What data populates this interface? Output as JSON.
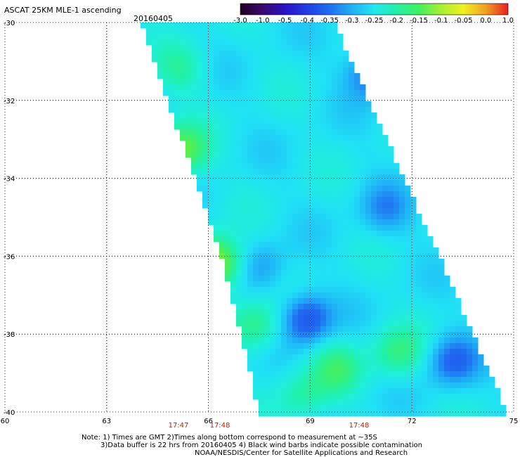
{
  "chart_data": {
    "type": "heatmap",
    "title": "ASCAT 25KM MLE-1 ascending",
    "date": "20160405",
    "colorbar": {
      "labels": [
        "-3.0",
        "-1.0",
        "-0.5",
        "-0.4",
        "-0.35",
        "-0.3",
        "-0.25",
        "-0.2",
        "-0.15",
        "-0.1",
        "-0.05",
        "0.0",
        "1.0"
      ],
      "colors": [
        "#200020",
        "#3a0a6e",
        "#2a10c8",
        "#1f3ee6",
        "#1f6ef0",
        "#1fb0f8",
        "#20e8f0",
        "#20f0a8",
        "#40f060",
        "#a8f030",
        "#f0f020",
        "#f0a020",
        "#e82020"
      ]
    },
    "x_ticks": [
      "60",
      "63",
      "66",
      "69",
      "72",
      "75"
    ],
    "y_ticks": [
      "-30",
      "-32",
      "-34",
      "-36",
      "-38",
      "-40"
    ],
    "xlim": [
      60,
      75
    ],
    "ylim": [
      -40,
      -30
    ],
    "grid": true,
    "times": [
      "17:47",
      "17:48",
      "17:48"
    ],
    "swath_edge_left": [
      [
        64.0,
        -30
      ],
      [
        66.4,
        -36
      ],
      [
        67.5,
        -40
      ]
    ],
    "swath_edge_right": [
      [
        69.7,
        -30
      ],
      [
        72.8,
        -36
      ],
      [
        74.8,
        -40
      ]
    ],
    "features": [
      {
        "type": "low",
        "x": 68.9,
        "y": -37.6,
        "value": -0.38
      },
      {
        "type": "low",
        "x": 73.2,
        "y": -38.7,
        "value": -0.36
      },
      {
        "type": "low",
        "x": 71.2,
        "y": -34.8,
        "value": -0.33
      },
      {
        "type": "low",
        "x": 67.6,
        "y": -36.3,
        "value": -0.32
      },
      {
        "type": "low",
        "x": 70.8,
        "y": -31.3,
        "value": -0.36
      },
      {
        "type": "high",
        "x": 65.2,
        "y": -33.3,
        "value": -0.15
      },
      {
        "type": "high",
        "x": 66.2,
        "y": -36.2,
        "value": -0.1
      },
      {
        "type": "high",
        "x": 71.6,
        "y": -38.5,
        "value": -0.2
      },
      {
        "type": "high",
        "x": 69.8,
        "y": -38.9,
        "value": -0.2
      },
      {
        "type": "high",
        "x": 65.2,
        "y": -31.2,
        "value": -0.22
      },
      {
        "type": "high",
        "x": 67.4,
        "y": -37.8,
        "value": -0.2
      },
      {
        "type": "high",
        "x": 68.8,
        "y": -39.6,
        "value": -0.22
      }
    ],
    "notes": [
      "Note: 1) Times are GMT 2)Times along bottom correspond to measurement at ~35S",
      "3)Data buffer is 22 hrs from 20160405 4) Black wind barbs indicate possible contamination",
      "NOAA/NESDIS/Center for Satellite Applications and Research"
    ]
  }
}
